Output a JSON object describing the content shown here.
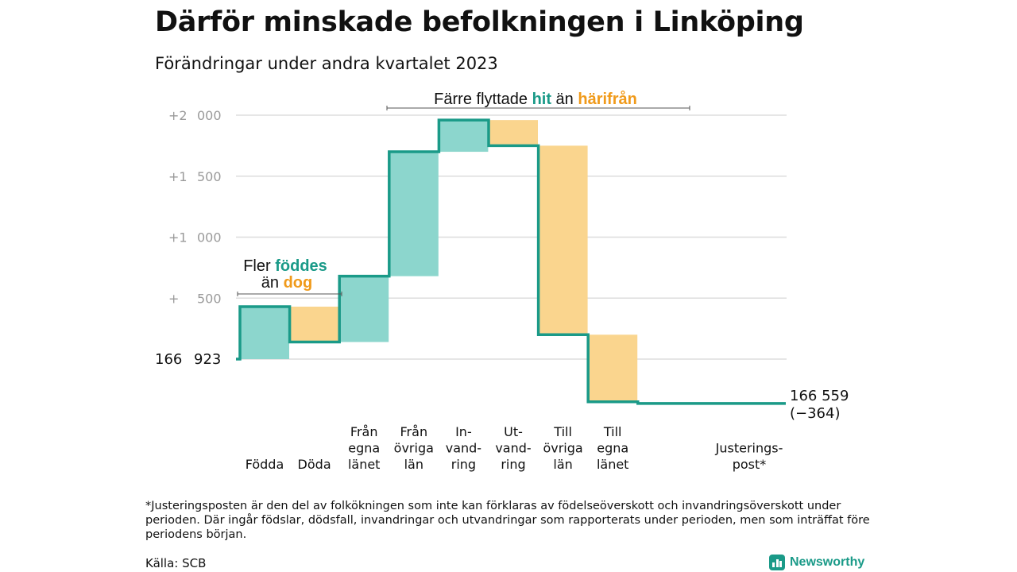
{
  "title": "Därför minskade befolkningen i Linköping",
  "subtitle": "Förändringar under andra kvartalet 2023",
  "colors": {
    "positive": "#8cd6cd",
    "negative": "#fad58e",
    "line": "#1a9a88",
    "accent_teal": "#1a9a88",
    "accent_orange": "#f09a1a",
    "grid": "#dddddd",
    "tick": "#9a9a9a"
  },
  "chart_data": {
    "type": "waterfall",
    "title": "Därför minskade befolkningen i Linköping",
    "subtitle": "Förändringar under andra kvartalet 2023",
    "baseline": 166923,
    "baseline_label": "166 923",
    "end_value": 166559,
    "end_label": "166 559",
    "net_change_label": "(−364)",
    "yticks": [
      {
        "value": 2000,
        "label": "+2 000"
      },
      {
        "value": 1500,
        "label": "+1 500"
      },
      {
        "value": 1000,
        "label": "+1 000"
      },
      {
        "value": 500,
        "label": "+ 500"
      }
    ],
    "ylim_relative": [
      -400,
      2050
    ],
    "steps": [
      {
        "category": "Födda",
        "label_lines": [
          "Födda"
        ],
        "change": 430,
        "kind": "positive"
      },
      {
        "category": "Döda",
        "label_lines": [
          "Döda"
        ],
        "change": -290,
        "kind": "negative"
      },
      {
        "category": "Från egna länet",
        "label_lines": [
          "Från",
          "egna",
          "länet"
        ],
        "change": 540,
        "kind": "positive"
      },
      {
        "category": "Från övriga län",
        "label_lines": [
          "Från",
          "övriga",
          "län"
        ],
        "change": 1020,
        "kind": "positive"
      },
      {
        "category": "Invandring",
        "label_lines": [
          "In-",
          "vand-",
          "ring"
        ],
        "change": 260,
        "kind": "positive"
      },
      {
        "category": "Utvandring",
        "label_lines": [
          "Ut-",
          "vand-",
          "ring"
        ],
        "change": -210,
        "kind": "negative"
      },
      {
        "category": "Till övriga län",
        "label_lines": [
          "Till",
          "övriga",
          "län"
        ],
        "change": -1550,
        "kind": "negative"
      },
      {
        "category": "Till egna länet",
        "label_lines": [
          "Till",
          "egna",
          "länet"
        ],
        "change": -550,
        "kind": "negative"
      },
      {
        "category": "Justeringspost*",
        "label_lines": [
          "Justerings-",
          "post*"
        ],
        "change": -14,
        "kind": "adjustment"
      }
    ],
    "annotations": {
      "births": {
        "line1": "Fler",
        "line1_highlight": "föddes",
        "line2": "än",
        "line2_highlight": "dog"
      },
      "migration": {
        "text": "Färre flyttade",
        "highlight_in": "hit",
        "middle": "än",
        "highlight_out": "härifrån"
      }
    }
  },
  "footnote": "*Justeringsposten är den del av folkökningen som inte kan förklaras av födelseöverskott och invandringsöverskott under perioden. Där ingår födslar, dödsfall, invandringar och utvandringar som rapporterats under perioden, men som inträffat före periodens början.",
  "source": "Källa: SCB",
  "brand": {
    "name": "Newsworthy",
    "logo_icon": "bar-chart-logo-icon"
  }
}
